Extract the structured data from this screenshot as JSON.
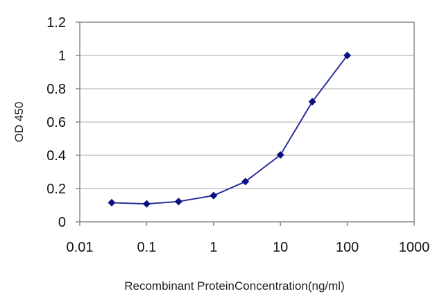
{
  "chart_data": {
    "type": "line",
    "xscale": "log",
    "xlabel": "Recombinant ProteinConcentration(ng/ml)",
    "ylabel": "OD 450",
    "xlim": [
      0.01,
      1000
    ],
    "ylim": [
      0,
      1.2
    ],
    "xticks": [
      0.01,
      0.1,
      1,
      10,
      100,
      1000
    ],
    "xtick_labels": [
      "0.01",
      "0.1",
      "1",
      "10",
      "100",
      "1000"
    ],
    "yticks": [
      0,
      0.2,
      0.4,
      0.6,
      0.8,
      1,
      1.2
    ],
    "ytick_labels": [
      "0",
      "0.2",
      "0.4",
      "0.6",
      "0.8",
      "1",
      "1.2"
    ],
    "grid": "horizontal",
    "series": [
      {
        "color": "#2b2f9c",
        "marker_color": "#0b0f80",
        "marker": "diamond",
        "x": [
          0.03,
          0.1,
          0.3,
          1,
          3,
          10,
          30,
          100
        ],
        "y": [
          0.115,
          0.108,
          0.122,
          0.158,
          0.242,
          0.402,
          0.722,
          1.0
        ]
      }
    ]
  }
}
